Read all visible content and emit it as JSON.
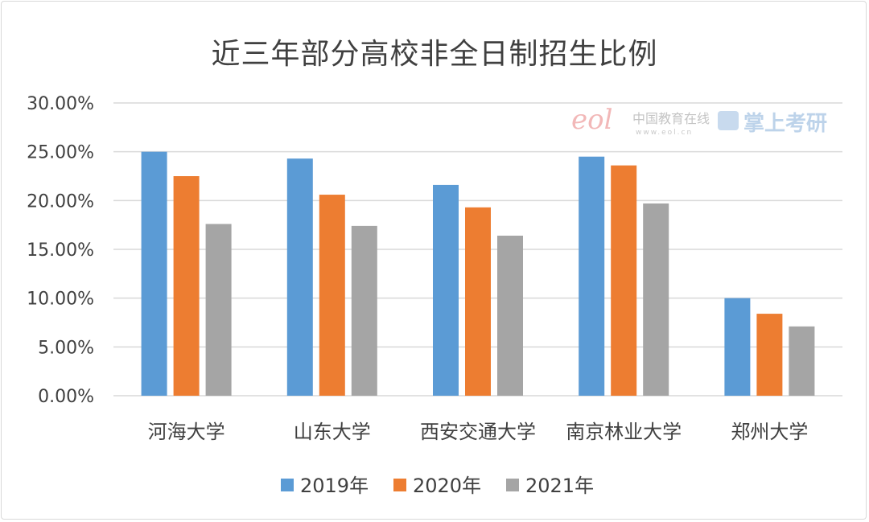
{
  "chart_data": {
    "type": "bar",
    "title": "近三年部分高校非全日制招生比例",
    "categories": [
      "河海大学",
      "山东大学",
      "西安交通大学",
      "南京林业大学",
      "郑州大学"
    ],
    "series": [
      {
        "name": "2019年",
        "color": "#5b9bd5",
        "values": [
          25.0,
          24.3,
          21.6,
          24.5,
          10.0
        ]
      },
      {
        "name": "2020年",
        "color": "#ed7d31",
        "values": [
          22.5,
          20.6,
          19.3,
          23.6,
          8.4
        ]
      },
      {
        "name": "2021年",
        "color": "#a5a5a5",
        "values": [
          17.6,
          17.4,
          16.4,
          19.7,
          7.1
        ]
      }
    ],
    "y_ticks": [
      "0.00%",
      "5.00%",
      "10.00%",
      "15.00%",
      "20.00%",
      "25.00%",
      "30.00%"
    ],
    "ylim": [
      0,
      30
    ],
    "grid": true,
    "legend_position": "bottom"
  },
  "watermark": {
    "logo_text": "eol",
    "cn_text": "中国教育在线",
    "url_text": "www.eol.cn",
    "brand_text": "掌上考研"
  }
}
